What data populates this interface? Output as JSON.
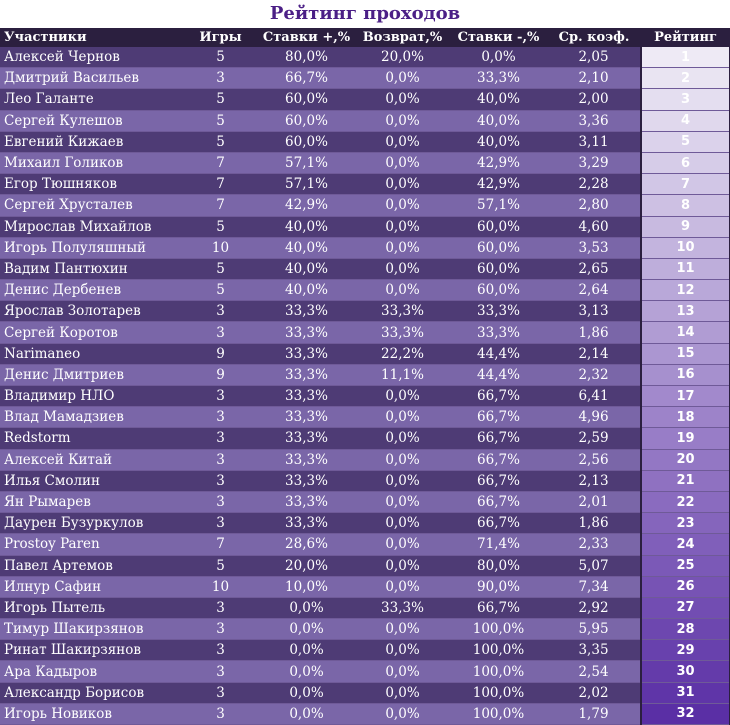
{
  "title": "Рейтинг проходов",
  "headers": {
    "name": "Участники",
    "games": "Игры",
    "plus": "Ставки +,%",
    "refund": "Возврат,%",
    "minus": "Ставки -,%",
    "coef": "Ср. коэф.",
    "rank": "Рейтинг"
  },
  "rows": [
    {
      "name": "Алексей Чернов",
      "games": "5",
      "plus": "80,0%",
      "refund": "20,0%",
      "minus": "0,0%",
      "coef": "2,05",
      "rank": "1"
    },
    {
      "name": "Дмитрий Васильев",
      "games": "3",
      "plus": "66,7%",
      "refund": "0,0%",
      "minus": "33,3%",
      "coef": "2,10",
      "rank": "2"
    },
    {
      "name": "Лео Галанте",
      "games": "5",
      "plus": "60,0%",
      "refund": "0,0%",
      "minus": "40,0%",
      "coef": "2,00",
      "rank": "3"
    },
    {
      "name": "Сергей Кулешов",
      "games": "5",
      "plus": "60,0%",
      "refund": "0,0%",
      "minus": "40,0%",
      "coef": "3,36",
      "rank": "4"
    },
    {
      "name": "Евгений Кижаев",
      "games": "5",
      "plus": "60,0%",
      "refund": "0,0%",
      "minus": "40,0%",
      "coef": "3,11",
      "rank": "5"
    },
    {
      "name": "Михаил Голиков",
      "games": "7",
      "plus": "57,1%",
      "refund": "0,0%",
      "minus": "42,9%",
      "coef": "3,29",
      "rank": "6"
    },
    {
      "name": "Егор Тюшняков",
      "games": "7",
      "plus": "57,1%",
      "refund": "0,0%",
      "minus": "42,9%",
      "coef": "2,28",
      "rank": "7"
    },
    {
      "name": "Сергей Хрусталев",
      "games": "7",
      "plus": "42,9%",
      "refund": "0,0%",
      "minus": "57,1%",
      "coef": "2,80",
      "rank": "8"
    },
    {
      "name": "Мирослав Михайлов",
      "games": "5",
      "plus": "40,0%",
      "refund": "0,0%",
      "minus": "60,0%",
      "coef": "4,60",
      "rank": "9"
    },
    {
      "name": "Игорь Полуляшный",
      "games": "10",
      "plus": "40,0%",
      "refund": "0,0%",
      "minus": "60,0%",
      "coef": "3,53",
      "rank": "10"
    },
    {
      "name": "Вадим Пантюхин",
      "games": "5",
      "plus": "40,0%",
      "refund": "0,0%",
      "minus": "60,0%",
      "coef": "2,65",
      "rank": "11"
    },
    {
      "name": "Денис Дербенев",
      "games": "5",
      "plus": "40,0%",
      "refund": "0,0%",
      "minus": "60,0%",
      "coef": "2,64",
      "rank": "12"
    },
    {
      "name": "Ярослав Золотарев",
      "games": "3",
      "plus": "33,3%",
      "refund": "33,3%",
      "minus": "33,3%",
      "coef": "3,13",
      "rank": "13"
    },
    {
      "name": "Сергей Коротов",
      "games": "3",
      "plus": "33,3%",
      "refund": "33,3%",
      "minus": "33,3%",
      "coef": "1,86",
      "rank": "14"
    },
    {
      "name": "Narimaneo",
      "games": "9",
      "plus": "33,3%",
      "refund": "22,2%",
      "minus": "44,4%",
      "coef": "2,14",
      "rank": "15"
    },
    {
      "name": "Денис Дмитриев",
      "games": "9",
      "plus": "33,3%",
      "refund": "11,1%",
      "minus": "44,4%",
      "coef": "2,32",
      "rank": "16"
    },
    {
      "name": "Владимир НЛО",
      "games": "3",
      "plus": "33,3%",
      "refund": "0,0%",
      "minus": "66,7%",
      "coef": "6,41",
      "rank": "17"
    },
    {
      "name": "Влад Мамадзиев",
      "games": "3",
      "plus": "33,3%",
      "refund": "0,0%",
      "minus": "66,7%",
      "coef": "4,96",
      "rank": "18"
    },
    {
      "name": "Redstorm",
      "games": "3",
      "plus": "33,3%",
      "refund": "0,0%",
      "minus": "66,7%",
      "coef": "2,59",
      "rank": "19"
    },
    {
      "name": "Алексей Китай",
      "games": "3",
      "plus": "33,3%",
      "refund": "0,0%",
      "minus": "66,7%",
      "coef": "2,56",
      "rank": "20"
    },
    {
      "name": "Илья Смолин",
      "games": "3",
      "plus": "33,3%",
      "refund": "0,0%",
      "minus": "66,7%",
      "coef": "2,13",
      "rank": "21"
    },
    {
      "name": "Ян Рымарев",
      "games": "3",
      "plus": "33,3%",
      "refund": "0,0%",
      "minus": "66,7%",
      "coef": "2,01",
      "rank": "22"
    },
    {
      "name": "Даурен Бузуркулов",
      "games": "3",
      "plus": "33,3%",
      "refund": "0,0%",
      "minus": "66,7%",
      "coef": "1,86",
      "rank": "23"
    },
    {
      "name": "Prostoy Paren",
      "games": "7",
      "plus": "28,6%",
      "refund": "0,0%",
      "minus": "71,4%",
      "coef": "2,33",
      "rank": "24"
    },
    {
      "name": "Павел Артемов",
      "games": "5",
      "plus": "20,0%",
      "refund": "0,0%",
      "minus": "80,0%",
      "coef": "5,07",
      "rank": "25"
    },
    {
      "name": "Илнур Сафин",
      "games": "10",
      "plus": "10,0%",
      "refund": "0,0%",
      "minus": "90,0%",
      "coef": "7,34",
      "rank": "26"
    },
    {
      "name": "Игорь Пытель",
      "games": "3",
      "plus": "0,0%",
      "refund": "33,3%",
      "minus": "66,7%",
      "coef": "2,92",
      "rank": "27"
    },
    {
      "name": "Тимур Шакирзянов",
      "games": "3",
      "plus": "0,0%",
      "refund": "0,0%",
      "minus": "100,0%",
      "coef": "5,95",
      "rank": "28"
    },
    {
      "name": "Ринат Шакирзянов",
      "games": "3",
      "plus": "0,0%",
      "refund": "0,0%",
      "minus": "100,0%",
      "coef": "3,35",
      "rank": "29"
    },
    {
      "name": "Ара Кадыров",
      "games": "3",
      "plus": "0,0%",
      "refund": "0,0%",
      "minus": "100,0%",
      "coef": "2,54",
      "rank": "30"
    },
    {
      "name": "Александр Борисов",
      "games": "3",
      "plus": "0,0%",
      "refund": "0,0%",
      "minus": "100,0%",
      "coef": "2,02",
      "rank": "31"
    },
    {
      "name": "Игорь Новиков",
      "games": "3",
      "plus": "0,0%",
      "refund": "0,0%",
      "minus": "100,0%",
      "coef": "1,79",
      "rank": "32"
    }
  ],
  "colors": {
    "title": "#4b1f86",
    "header_bg": "#2b1f3f",
    "row_dark": "#4e3b75",
    "row_light": "#7a66a8",
    "rank_start": "#eeeaf5",
    "rank_end": "#5a2fa5"
  }
}
